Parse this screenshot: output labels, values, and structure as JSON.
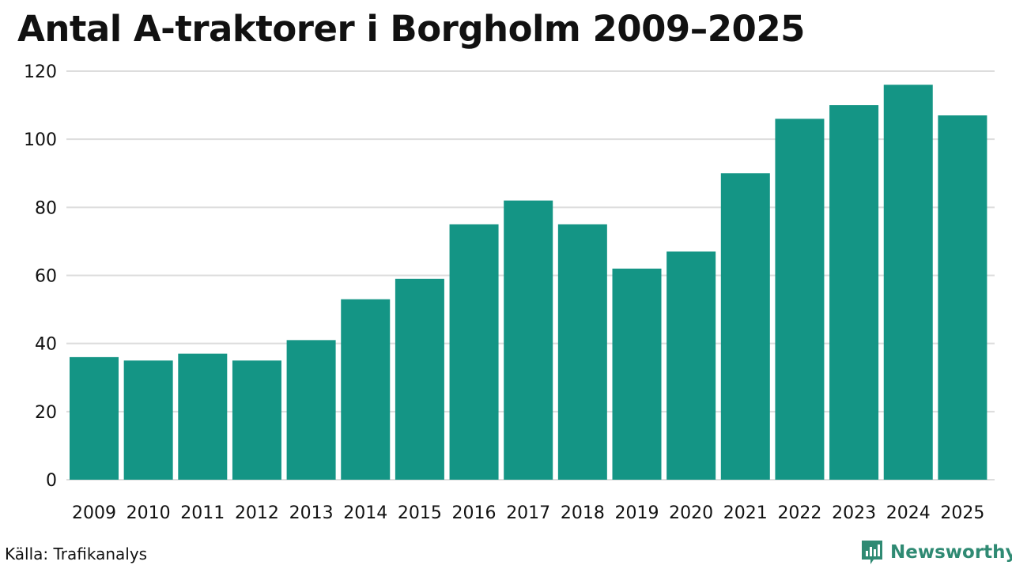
{
  "title": "Antal A-traktorer i Borgholm 2009–2025",
  "source": "Källa: Trafikanalys",
  "brand": {
    "name": "Newsworthy",
    "icon": "newsworthy-logo-icon"
  },
  "colors": {
    "bar": "#149585",
    "grid": "#dddddd",
    "brand": "#2f8a73"
  },
  "chart_data": {
    "type": "bar",
    "title": "Antal A-traktorer i Borgholm 2009–2025",
    "xlabel": "",
    "ylabel": "",
    "categories": [
      "2009",
      "2010",
      "2011",
      "2012",
      "2013",
      "2014",
      "2015",
      "2016",
      "2017",
      "2018",
      "2019",
      "2020",
      "2021",
      "2022",
      "2023",
      "2024",
      "2025"
    ],
    "values": [
      36,
      35,
      37,
      35,
      41,
      53,
      59,
      75,
      82,
      75,
      62,
      67,
      90,
      106,
      110,
      116,
      107
    ],
    "ylim": [
      0,
      120
    ],
    "yticks": [
      0,
      20,
      40,
      60,
      80,
      100,
      120
    ],
    "grid": true
  }
}
